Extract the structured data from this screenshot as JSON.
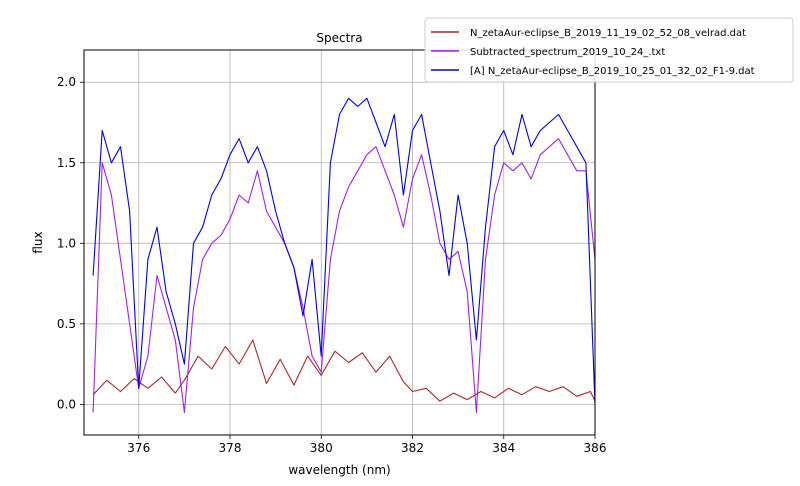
{
  "chart_data": {
    "type": "line",
    "title": "Spectra",
    "xlabel": "wavelength (nm)",
    "ylabel": "flux",
    "xlim": [
      374.8,
      386.0
    ],
    "ylim": [
      -0.19,
      2.2
    ],
    "xticks": [
      376,
      378,
      380,
      382,
      384,
      386
    ],
    "xtick_labels": [
      "376",
      "378",
      "380",
      "382",
      "384",
      "386"
    ],
    "yticks": [
      0.0,
      0.5,
      1.0,
      1.5,
      2.0
    ],
    "ytick_labels": [
      "0.0",
      "0.5",
      "1.0",
      "1.5",
      "2.0"
    ],
    "grid": true,
    "legend_position": "top-right",
    "series": [
      {
        "name": "N_zetaAur-eclipse_B_2019_11_19_02_52_08_velrad.dat",
        "color": "#a52a2a",
        "x": [
          375.0,
          375.3,
          375.6,
          375.9,
          376.2,
          376.5,
          376.8,
          377.0,
          377.3,
          377.6,
          377.9,
          378.2,
          378.5,
          378.8,
          379.1,
          379.4,
          379.7,
          380.0,
          380.3,
          380.6,
          380.9,
          381.2,
          381.5,
          381.8,
          382.0,
          382.3,
          382.6,
          382.9,
          383.2,
          383.5,
          383.8,
          384.1,
          384.4,
          384.7,
          385.0,
          385.3,
          385.6,
          385.9,
          386.0
        ],
        "y": [
          0.06,
          0.15,
          0.08,
          0.16,
          0.1,
          0.17,
          0.07,
          0.15,
          0.3,
          0.22,
          0.36,
          0.25,
          0.4,
          0.13,
          0.28,
          0.12,
          0.3,
          0.18,
          0.33,
          0.26,
          0.32,
          0.2,
          0.3,
          0.14,
          0.08,
          0.1,
          0.02,
          0.07,
          0.03,
          0.08,
          0.04,
          0.1,
          0.06,
          0.11,
          0.08,
          0.11,
          0.05,
          0.08,
          0.02
        ]
      },
      {
        "name": "Subtracted_spectrum_2019_10_24_.txt",
        "color": "#a020f0",
        "x": [
          375.0,
          375.2,
          375.4,
          375.6,
          375.8,
          376.0,
          376.2,
          376.4,
          376.6,
          376.8,
          377.0,
          377.2,
          377.4,
          377.6,
          377.8,
          378.0,
          378.2,
          378.4,
          378.6,
          378.8,
          379.0,
          379.2,
          379.4,
          379.6,
          379.8,
          380.0,
          380.2,
          380.4,
          380.6,
          380.8,
          381.0,
          381.2,
          381.4,
          381.6,
          381.8,
          382.0,
          382.2,
          382.4,
          382.6,
          382.8,
          383.0,
          383.2,
          383.4,
          383.6,
          383.8,
          384.0,
          384.2,
          384.4,
          384.6,
          384.8,
          385.0,
          385.2,
          385.4,
          385.6,
          385.8,
          386.0
        ],
        "y": [
          -0.05,
          1.5,
          1.3,
          0.9,
          0.5,
          0.1,
          0.3,
          0.8,
          0.6,
          0.4,
          -0.05,
          0.6,
          0.9,
          1.0,
          1.05,
          1.15,
          1.3,
          1.25,
          1.45,
          1.2,
          1.1,
          1.0,
          0.85,
          0.6,
          0.3,
          0.2,
          0.9,
          1.2,
          1.35,
          1.45,
          1.55,
          1.6,
          1.45,
          1.3,
          1.1,
          1.4,
          1.55,
          1.3,
          1.0,
          0.9,
          0.95,
          0.7,
          -0.05,
          0.9,
          1.3,
          1.5,
          1.45,
          1.5,
          1.4,
          1.55,
          1.6,
          1.65,
          1.55,
          1.45,
          1.45,
          0.9
        ]
      },
      {
        "name": "[A] N_zetaAur-eclipse_B_2019_10_25_01_32_02_F1-9.dat",
        "color": "#0000ee",
        "x": [
          375.0,
          375.2,
          375.4,
          375.6,
          375.8,
          376.0,
          376.2,
          376.4,
          376.6,
          376.8,
          377.0,
          377.2,
          377.4,
          377.6,
          377.8,
          378.0,
          378.2,
          378.4,
          378.6,
          378.8,
          379.0,
          379.2,
          379.4,
          379.6,
          379.8,
          380.0,
          380.2,
          380.4,
          380.6,
          380.8,
          381.0,
          381.2,
          381.4,
          381.6,
          381.8,
          382.0,
          382.2,
          382.4,
          382.6,
          382.8,
          383.0,
          383.2,
          383.4,
          383.6,
          383.8,
          384.0,
          384.2,
          384.4,
          384.6,
          384.8,
          385.0,
          385.2,
          385.4,
          385.6,
          385.8,
          386.0
        ],
        "y": [
          0.8,
          1.7,
          1.5,
          1.6,
          1.2,
          0.1,
          0.9,
          1.1,
          0.7,
          0.5,
          0.25,
          1.0,
          1.1,
          1.3,
          1.4,
          1.55,
          1.65,
          1.5,
          1.6,
          1.45,
          1.2,
          1.0,
          0.85,
          0.55,
          0.9,
          0.3,
          1.5,
          1.8,
          1.9,
          1.85,
          1.9,
          1.75,
          1.6,
          1.8,
          1.3,
          1.7,
          1.8,
          1.5,
          1.2,
          0.8,
          1.3,
          1.0,
          0.4,
          1.1,
          1.6,
          1.7,
          1.55,
          1.8,
          1.6,
          1.7,
          1.75,
          1.8,
          1.7,
          1.6,
          1.5,
          0.0
        ]
      }
    ]
  }
}
